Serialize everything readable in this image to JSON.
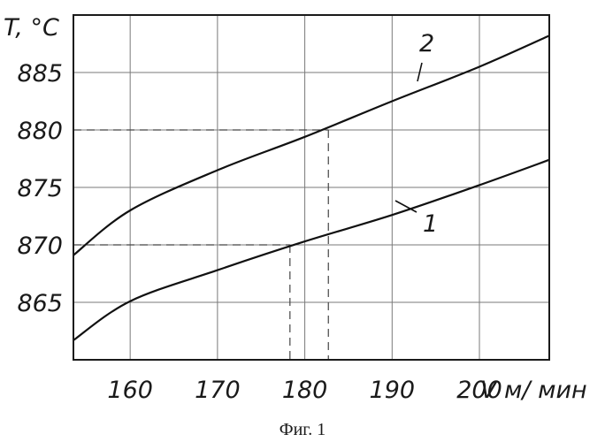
{
  "chart_data": {
    "type": "line",
    "ylabel": "T, °C",
    "xlabel": "V м/ мин",
    "caption": "Фиг. 1",
    "xlim": [
      153.5,
      208
    ],
    "ylim": [
      860,
      890
    ],
    "x_ticks": [
      160,
      170,
      180,
      190,
      200
    ],
    "y_ticks": [
      865,
      870,
      875,
      880,
      885
    ],
    "grid": true,
    "series": [
      {
        "name": "1",
        "x": [
          153.5,
          160,
          170,
          180,
          190,
          200,
          208
        ],
        "y": [
          861.7,
          865.1,
          867.8,
          870.3,
          872.6,
          875.2,
          877.4
        ]
      },
      {
        "name": "2",
        "x": [
          153.5,
          160,
          170,
          180,
          190,
          200,
          208
        ],
        "y": [
          869.1,
          873.0,
          876.5,
          879.4,
          882.5,
          885.5,
          888.2
        ]
      }
    ],
    "guides": [
      {
        "series": "1",
        "x": 178.3,
        "y": 870
      },
      {
        "series": "2",
        "x": 182.7,
        "y": 880
      }
    ]
  }
}
